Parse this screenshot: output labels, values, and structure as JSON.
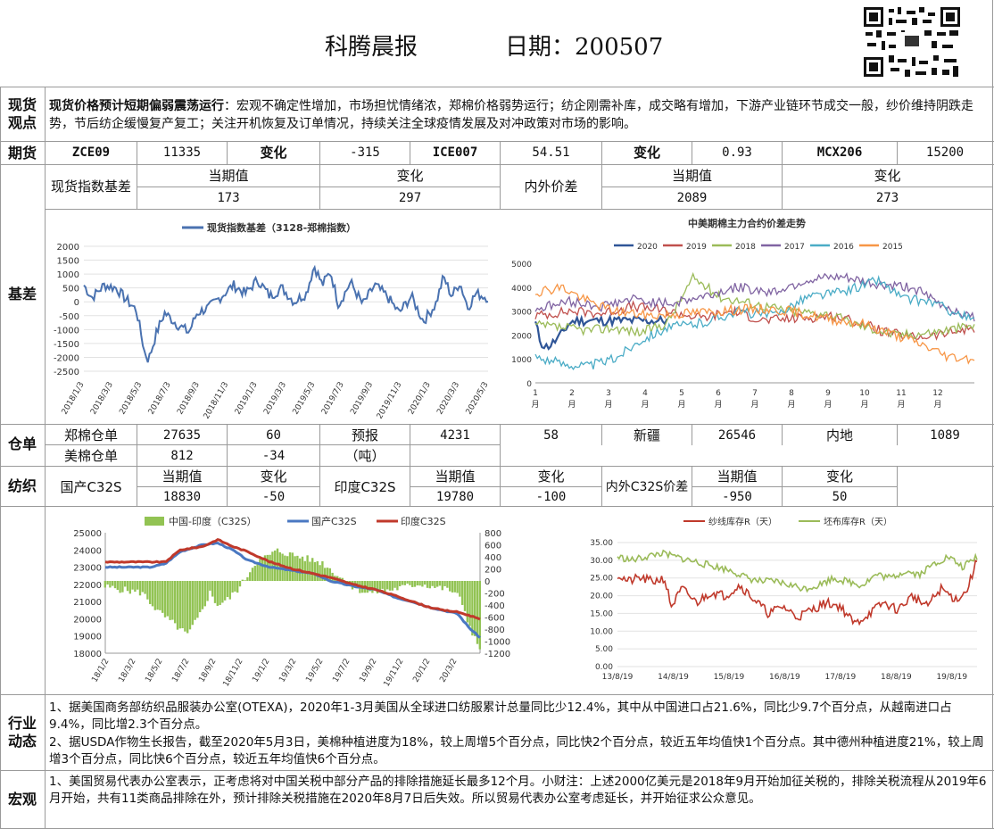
{
  "header": {
    "title": "科腾晨报",
    "date_label": "日期：200507"
  },
  "spot": {
    "label": "现货观点",
    "headline": "现货价格预计短期偏弱震荡运行",
    "text": "：宏观不确定性增加，市场担忧情绪浓，郑棉价格弱势运行；纺企刚需补库，成交略有增加，下游产业链环节成交一般，纱价维持阴跌走势，节后纺企缓慢复产复工；关注开机恢复及订单情况，持续关注全球疫情发展及对冲政策对市场的影响。"
  },
  "futures": {
    "label": "期货",
    "c1": "ZCE09",
    "v1": "11335",
    "chg1_label": "变化",
    "chg1": "-315",
    "c2": "ICE007",
    "v2": "54.51",
    "chg2_label": "变化",
    "chg2": "0.93",
    "c3": "MCX206",
    "v3": "15200"
  },
  "basis": {
    "label": "基差",
    "spot_basis_label": "现货指数基差",
    "cur_label": "当期值",
    "chg_label": "变化",
    "spot_cur": "173",
    "spot_chg": "297",
    "inout_label": "内外价差",
    "inout_cur_label": "当期值",
    "inout_chg_label": "变化",
    "inout_cur": "2089",
    "inout_chg": "273"
  },
  "warehouse": {
    "label": "仓单",
    "zheng_label": "郑棉仓单",
    "zheng_val": "27635",
    "zheng_chg": "60",
    "forecast_label": "预报",
    "forecast_val": "4231",
    "forecast_chg": "58",
    "xinjiang_label": "新疆",
    "xinjiang_val": "26546",
    "inland_label": "内地",
    "inland_val": "1089",
    "us_label": "美棉仓单",
    "us_val": "812",
    "us_chg": "-34",
    "unit": "（吨）"
  },
  "textile": {
    "label": "纺织",
    "dom_label": "国产C32S",
    "cur_label": "当期值",
    "chg_label": "变化",
    "dom_cur": "18830",
    "dom_chg": "-50",
    "ind_label": "印度C32S",
    "ind_cur_label": "当期值",
    "ind_chg_label": "变化",
    "ind_cur": "19780",
    "ind_chg": "-100",
    "spread_label": "内外C32S价差",
    "spread_cur_label": "当期值",
    "spread_chg_label": "变化",
    "spread_cur": "-950",
    "spread_chg": "50"
  },
  "industry": {
    "label": "行业动态",
    "p1": "1、据美国商务部纺织品服装办公室(OTEXA)，2020年1-3月美国从全球进口纺服累计总量同比少12.4%，其中从中国进口占21.6%，同比少9.7个百分点，从越南进口占9.4%，同比增2.3个百分点。",
    "p2": "2、据USDA作物生长报告，截至2020年5月3日，美棉种植进度为18%，较上周增5个百分点，同比快2个百分点，较近五年均值快1个百分点。其中德州种植进度21%，较上周增3个百分点，同比快6个百分点，较近五年均值快6个百分点。"
  },
  "macro": {
    "label": "宏观",
    "p1": "1、美国贸易代表办公室表示，正考虑将对中国关税中部分产品的排除措施延长最多12个月。小财注：上述2000亿美元是2018年9月开始加征关税的，排除关税流程从2019年6月开始，共有11类商品排除在外，预计排除关税措施在2020年8月7日后失效。所以贸易代表办公室考虑延长，并开始征求公众意见。"
  },
  "chart_data": [
    {
      "type": "line",
      "title": "",
      "series": [
        {
          "name": "现货指数基差（3128-郑棉指数）",
          "color": "#4a72b0"
        }
      ],
      "x_ticks": [
        "2018/1/3",
        "2018/3/3",
        "2018/5/3",
        "2018/7/3",
        "2018/9/3",
        "2018/11/3",
        "2019/1/3",
        "2019/3/3",
        "2019/5/3",
        "2019/7/3",
        "2019/9/3",
        "2019/11/3",
        "2020/1/3",
        "2020/3/3",
        "2020/5/3"
      ],
      "y_ticks": [
        "2000",
        "1500",
        "1000",
        "500",
        "0",
        "-500",
        "-1000",
        "-1500",
        "-2000",
        "-2500"
      ],
      "ylim": [
        -2500,
        2000
      ],
      "anchors": [
        [
          0,
          600
        ],
        [
          0.02,
          150
        ],
        [
          0.05,
          600
        ],
        [
          0.08,
          500
        ],
        [
          0.1,
          150
        ],
        [
          0.13,
          -300
        ],
        [
          0.15,
          -1800
        ],
        [
          0.16,
          -2100
        ],
        [
          0.18,
          -1100
        ],
        [
          0.2,
          -400
        ],
        [
          0.23,
          -800
        ],
        [
          0.26,
          -1100
        ],
        [
          0.28,
          -400
        ],
        [
          0.31,
          -200
        ],
        [
          0.34,
          200
        ],
        [
          0.37,
          600
        ],
        [
          0.4,
          300
        ],
        [
          0.43,
          800
        ],
        [
          0.46,
          200
        ],
        [
          0.49,
          500
        ],
        [
          0.52,
          0
        ],
        [
          0.55,
          300
        ],
        [
          0.57,
          1300
        ],
        [
          0.59,
          600
        ],
        [
          0.61,
          1100
        ],
        [
          0.63,
          -100
        ],
        [
          0.66,
          700
        ],
        [
          0.69,
          -100
        ],
        [
          0.72,
          600
        ],
        [
          0.75,
          200
        ],
        [
          0.78,
          -400
        ],
        [
          0.81,
          200
        ],
        [
          0.84,
          -700
        ],
        [
          0.87,
          -100
        ],
        [
          0.89,
          900
        ],
        [
          0.91,
          200
        ],
        [
          0.93,
          700
        ],
        [
          0.95,
          -200
        ],
        [
          0.97,
          300
        ],
        [
          1,
          150
        ]
      ]
    },
    {
      "type": "line",
      "title": "中美期棉主力合约价差走势",
      "x_ticks": [
        "1\n月",
        "2\n月",
        "3\n月",
        "4\n月",
        "5\n月",
        "6\n月",
        "7\n月",
        "8\n月",
        "9\n月",
        "10\n月",
        "11\n月",
        "12\n月"
      ],
      "y_ticks": [
        "5000",
        "4000",
        "3000",
        "2000",
        "1000",
        "0"
      ],
      "ylim": [
        0,
        5000
      ],
      "series": [
        {
          "name": "2020",
          "color": "#2f5597",
          "points": [
            [
              0,
              2500
            ],
            [
              0.04,
              1700
            ],
            [
              0.08,
              1500
            ],
            [
              0.12,
              1600
            ],
            [
              0.18,
              1900
            ],
            [
              0.22,
              2200
            ],
            [
              0.26,
              2500
            ],
            [
              0.3,
              2600
            ]
          ]
        },
        {
          "name": "2019",
          "color": "#c0504d",
          "points": [
            [
              0,
              2800
            ],
            [
              0.08,
              3000
            ],
            [
              0.15,
              2900
            ],
            [
              0.22,
              3200
            ],
            [
              0.3,
              3000
            ],
            [
              0.38,
              2700
            ],
            [
              0.45,
              3000
            ],
            [
              0.52,
              2600
            ],
            [
              0.6,
              2700
            ],
            [
              0.68,
              2800
            ],
            [
              0.74,
              2500
            ],
            [
              0.8,
              2100
            ],
            [
              0.86,
              1900
            ],
            [
              0.92,
              2000
            ],
            [
              1,
              2300
            ]
          ]
        },
        {
          "name": "2018",
          "color": "#9bbb59",
          "points": [
            [
              0,
              2400
            ],
            [
              0.06,
              2300
            ],
            [
              0.12,
              2200
            ],
            [
              0.18,
              2300
            ],
            [
              0.24,
              2100
            ],
            [
              0.3,
              2500
            ],
            [
              0.36,
              4400
            ],
            [
              0.42,
              3600
            ],
            [
              0.5,
              3300
            ],
            [
              0.58,
              3000
            ],
            [
              0.66,
              2900
            ],
            [
              0.74,
              2400
            ],
            [
              0.82,
              2000
            ],
            [
              0.9,
              2100
            ],
            [
              1,
              2400
            ]
          ]
        },
        {
          "name": "2017",
          "color": "#8064a2",
          "points": [
            [
              0,
              3100
            ],
            [
              0.08,
              3400
            ],
            [
              0.15,
              3200
            ],
            [
              0.22,
              3500
            ],
            [
              0.3,
              3300
            ],
            [
              0.38,
              3600
            ],
            [
              0.46,
              4000
            ],
            [
              0.54,
              3800
            ],
            [
              0.62,
              4300
            ],
            [
              0.7,
              4400
            ],
            [
              0.78,
              4100
            ],
            [
              0.86,
              4000
            ],
            [
              0.92,
              3300
            ],
            [
              1,
              2700
            ]
          ]
        },
        {
          "name": "2016",
          "color": "#4bacc6",
          "points": [
            [
              0,
              1100
            ],
            [
              0.06,
              800
            ],
            [
              0.12,
              700
            ],
            [
              0.18,
              1000
            ],
            [
              0.24,
              1800
            ],
            [
              0.3,
              2300
            ],
            [
              0.38,
              2500
            ],
            [
              0.46,
              3000
            ],
            [
              0.54,
              2800
            ],
            [
              0.62,
              3600
            ],
            [
              0.7,
              3800
            ],
            [
              0.78,
              4300
            ],
            [
              0.84,
              3500
            ],
            [
              0.9,
              3400
            ],
            [
              0.96,
              2900
            ],
            [
              1,
              2600
            ]
          ]
        },
        {
          "name": "2015",
          "color": "#f79646",
          "points": [
            [
              0,
              3800
            ],
            [
              0.06,
              4000
            ],
            [
              0.12,
              3400
            ],
            [
              0.18,
              3000
            ],
            [
              0.26,
              2800
            ],
            [
              0.34,
              2900
            ],
            [
              0.42,
              3000
            ],
            [
              0.5,
              3100
            ],
            [
              0.58,
              3000
            ],
            [
              0.66,
              2700
            ],
            [
              0.74,
              2500
            ],
            [
              0.82,
              2000
            ],
            [
              0.88,
              1600
            ],
            [
              0.94,
              1100
            ],
            [
              1,
              1000
            ]
          ]
        }
      ]
    },
    {
      "type": "bar+line",
      "title": "",
      "series": [
        {
          "name": "中国-印度（C32S）",
          "color": "#92c353",
          "kind": "bar",
          "axis": "right"
        },
        {
          "name": "国产C32S",
          "color": "#4a78c2",
          "kind": "line",
          "axis": "left"
        },
        {
          "name": "印度C32S",
          "color": "#c0392b",
          "kind": "line",
          "axis": "left"
        }
      ],
      "x_ticks": [
        "18/1/2",
        "18/3/2",
        "18/5/2",
        "18/7/2",
        "18/9/2",
        "18/11/2",
        "19/1/2",
        "19/3/2",
        "19/5/2",
        "19/7/2",
        "19/9/2",
        "19/11/2",
        "20/1/2",
        "20/3/2"
      ],
      "y_left_ticks": [
        "25000",
        "24000",
        "23000",
        "22000",
        "21000",
        "20000",
        "19000",
        "18000"
      ],
      "y_right_ticks": [
        "800",
        "600",
        "400",
        "200",
        "0",
        "-200",
        "-400",
        "-600",
        "-800",
        "-1000",
        "-1200"
      ],
      "ylim_left": [
        18000,
        25000
      ],
      "ylim_right": [
        -1200,
        800
      ],
      "domestic": [
        [
          0,
          23000
        ],
        [
          0.12,
          23000
        ],
        [
          0.16,
          23200
        ],
        [
          0.2,
          23900
        ],
        [
          0.26,
          24300
        ],
        [
          0.3,
          24400
        ],
        [
          0.34,
          24000
        ],
        [
          0.38,
          23400
        ],
        [
          0.44,
          23000
        ],
        [
          0.5,
          22800
        ],
        [
          0.56,
          22600
        ],
        [
          0.6,
          22200
        ],
        [
          0.66,
          21900
        ],
        [
          0.72,
          21700
        ],
        [
          0.78,
          21200
        ],
        [
          0.82,
          21000
        ],
        [
          0.86,
          20700
        ],
        [
          0.9,
          20500
        ],
        [
          0.94,
          20300
        ],
        [
          0.97,
          19500
        ],
        [
          1,
          18900
        ]
      ],
      "india": [
        [
          0,
          23300
        ],
        [
          0.12,
          23300
        ],
        [
          0.16,
          23300
        ],
        [
          0.2,
          24000
        ],
        [
          0.26,
          24200
        ],
        [
          0.3,
          24600
        ],
        [
          0.34,
          24200
        ],
        [
          0.38,
          23900
        ],
        [
          0.44,
          23300
        ],
        [
          0.5,
          22900
        ],
        [
          0.56,
          22600
        ],
        [
          0.6,
          22400
        ],
        [
          0.66,
          22000
        ],
        [
          0.72,
          21700
        ],
        [
          0.78,
          21300
        ],
        [
          0.82,
          21000
        ],
        [
          0.86,
          20700
        ],
        [
          0.9,
          20500
        ],
        [
          0.94,
          20400
        ],
        [
          0.97,
          20200
        ],
        [
          1,
          20000
        ]
      ],
      "spread": [
        [
          0,
          -100
        ],
        [
          0.1,
          -200
        ],
        [
          0.14,
          -500
        ],
        [
          0.18,
          -700
        ],
        [
          0.22,
          -900
        ],
        [
          0.25,
          -600
        ],
        [
          0.28,
          -200
        ],
        [
          0.3,
          -400
        ],
        [
          0.33,
          -300
        ],
        [
          0.36,
          -100
        ],
        [
          0.4,
          300
        ],
        [
          0.46,
          500
        ],
        [
          0.52,
          400
        ],
        [
          0.58,
          300
        ],
        [
          0.62,
          100
        ],
        [
          0.66,
          -100
        ],
        [
          0.7,
          -200
        ],
        [
          0.76,
          -150
        ],
        [
          0.8,
          -100
        ],
        [
          0.84,
          -50
        ],
        [
          0.88,
          -100
        ],
        [
          0.92,
          -150
        ],
        [
          0.95,
          -300
        ],
        [
          0.98,
          -900
        ],
        [
          1,
          -1100
        ]
      ]
    },
    {
      "type": "line",
      "title": "",
      "series": [
        {
          "name": "纱线库存R（天）",
          "color": "#c0392b"
        },
        {
          "name": "坯布库存R（天）",
          "color": "#9bbb59"
        }
      ],
      "x_ticks": [
        "13/8/19",
        "14/8/19",
        "15/8/19",
        "16/8/19",
        "17/8/19",
        "18/8/19",
        "19/8/19"
      ],
      "y_ticks": [
        "35.00",
        "30.00",
        "25.00",
        "20.00",
        "15.00",
        "10.00",
        "5.00",
        "0.00"
      ],
      "ylim": [
        0,
        35
      ],
      "yarn": [
        [
          0,
          26
        ],
        [
          0.03,
          24
        ],
        [
          0.06,
          25
        ],
        [
          0.1,
          24
        ],
        [
          0.13,
          25
        ],
        [
          0.15,
          17
        ],
        [
          0.18,
          22
        ],
        [
          0.22,
          18
        ],
        [
          0.26,
          21
        ],
        [
          0.3,
          20
        ],
        [
          0.34,
          23
        ],
        [
          0.38,
          19
        ],
        [
          0.42,
          15
        ],
        [
          0.46,
          17
        ],
        [
          0.5,
          14
        ],
        [
          0.54,
          16
        ],
        [
          0.58,
          18
        ],
        [
          0.62,
          17
        ],
        [
          0.66,
          12
        ],
        [
          0.7,
          15
        ],
        [
          0.74,
          18
        ],
        [
          0.78,
          16
        ],
        [
          0.82,
          20
        ],
        [
          0.86,
          17
        ],
        [
          0.9,
          22
        ],
        [
          0.94,
          19
        ],
        [
          0.97,
          21
        ],
        [
          1,
          30
        ]
      ],
      "fabric": [
        [
          0,
          31
        ],
        [
          0.04,
          30
        ],
        [
          0.08,
          31
        ],
        [
          0.12,
          32
        ],
        [
          0.16,
          31
        ],
        [
          0.2,
          30
        ],
        [
          0.24,
          29
        ],
        [
          0.28,
          28
        ],
        [
          0.32,
          27
        ],
        [
          0.36,
          25
        ],
        [
          0.4,
          24
        ],
        [
          0.44,
          24
        ],
        [
          0.48,
          23
        ],
        [
          0.52,
          22
        ],
        [
          0.56,
          23
        ],
        [
          0.6,
          25
        ],
        [
          0.64,
          24
        ],
        [
          0.68,
          23
        ],
        [
          0.72,
          26
        ],
        [
          0.76,
          25
        ],
        [
          0.8,
          27
        ],
        [
          0.84,
          26
        ],
        [
          0.88,
          29
        ],
        [
          0.92,
          31
        ],
        [
          0.96,
          28
        ],
        [
          1,
          31
        ]
      ]
    }
  ]
}
